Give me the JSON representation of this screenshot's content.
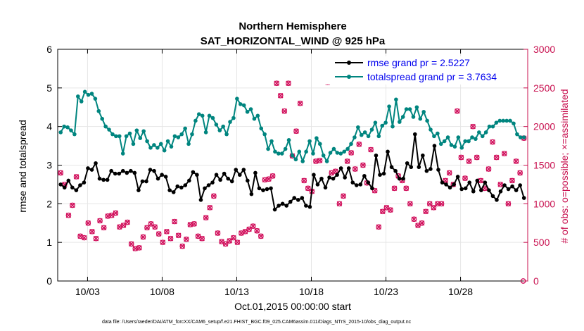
{
  "chart_data": {
    "type": "line",
    "title": [
      "Northern Hemisphere",
      "SAT_HORIZONTAL_WIND @ 925 hPa"
    ],
    "xlabel": "Oct.01,2015 00:00:00 start",
    "ylabel_left": "rmse and totalspread",
    "ylabel_right": "# of obs: o=possible; ×=assimilated",
    "footnote": "data file: /Users/raeder/DAI/ATM_forcXX/CAM6_setup/f.e21.FHIST_BGC.f09_025.CAM6assim.011/Diags_NTrS_2015-10/obs_diag_output.nc",
    "xlim": [
      1.0,
      32.5
    ],
    "ylim_left": [
      0,
      6
    ],
    "ylim_right": [
      0,
      3000
    ],
    "x_ticks": [
      3,
      8,
      13,
      18,
      23,
      28
    ],
    "x_ticklabels": [
      "10/03",
      "10/08",
      "10/13",
      "10/18",
      "10/23",
      "10/28"
    ],
    "y_left_ticks": [
      "0",
      "1",
      "2",
      "3",
      "4",
      "5",
      "6"
    ],
    "y_right_ticks": [
      "0",
      "500",
      "1000",
      "1500",
      "2000",
      "2500",
      "3000"
    ],
    "legend": [
      "rmse grand pr = 2.5227",
      "totalspread grand pr = 3.7634"
    ],
    "colors": {
      "rmse": "#000000",
      "spread": "#00857f",
      "obs": "#d1105c",
      "legend_text": "#0000ee",
      "right_axis": "#c8104f"
    },
    "series": [
      {
        "name": "rmse",
        "values": [
          2.5,
          2.42,
          2.6,
          2.42,
          2.35,
          2.48,
          2.55,
          2.92,
          2.88,
          3.05,
          2.65,
          2.62,
          2.62,
          2.85,
          2.78,
          2.78,
          2.85,
          2.8,
          2.85,
          2.8,
          2.35,
          2.58,
          2.58,
          2.88,
          2.85,
          2.65,
          2.75,
          2.7,
          2.35,
          2.3,
          2.45,
          2.42,
          2.48,
          2.6,
          2.82,
          2.75,
          2.1,
          2.4,
          2.48,
          2.55,
          2.75,
          2.62,
          2.78,
          2.65,
          2.58,
          2.88,
          2.75,
          2.88,
          2.6,
          2.25,
          2.8,
          2.4,
          2.35,
          2.38,
          2.4,
          1.85,
          1.95,
          2.0,
          1.95,
          2.05,
          2.15,
          2.1,
          2.15,
          1.95,
          1.92,
          2.75,
          2.5,
          2.65,
          2.42,
          2.68,
          2.65,
          2.75,
          2.92,
          2.68,
          2.92,
          2.55,
          2.48,
          2.5,
          2.72,
          2.55,
          2.4,
          3.25,
          2.75,
          2.78,
          3.35,
          2.95,
          2.85,
          2.65,
          2.65,
          3.05,
          2.95,
          3.8,
          2.95,
          3.25,
          2.85,
          2.9,
          3.5,
          2.88,
          2.55,
          2.5,
          2.42,
          2.5,
          2.7,
          2.38,
          2.4,
          2.55,
          2.32,
          2.6,
          2.35,
          2.55,
          2.35,
          2.2,
          2.1,
          2.32,
          2.48,
          2.38,
          2.45,
          2.35,
          2.48,
          2.15
        ],
        "marker": "dot"
      },
      {
        "name": "totalspread",
        "values": [
          3.85,
          4.0,
          3.98,
          3.9,
          3.8,
          4.78,
          4.65,
          4.9,
          4.82,
          4.85,
          4.72,
          4.4,
          4.2,
          4.0,
          3.92,
          3.8,
          3.75,
          3.75,
          3.3,
          3.75,
          3.82,
          3.55,
          3.9,
          3.7,
          3.88,
          3.62,
          3.45,
          3.52,
          3.45,
          3.55,
          3.38,
          3.62,
          3.48,
          3.75,
          3.72,
          3.8,
          3.95,
          3.55,
          3.8,
          4.15,
          4.32,
          4.28,
          3.85,
          4.28,
          4.22,
          4.05,
          3.9,
          4.0,
          3.8,
          4.12,
          4.22,
          4.72,
          4.58,
          4.55,
          4.38,
          4.45,
          4.2,
          4.28,
          3.95,
          3.8,
          3.42,
          3.62,
          3.35,
          3.3,
          3.3,
          3.42,
          3.65,
          3.25,
          3.15,
          3.35,
          3.1,
          3.35,
          3.62,
          3.3,
          3.7,
          3.55,
          3.25,
          3.1,
          3.32,
          3.42,
          3.32,
          3.3,
          3.35,
          3.42,
          3.55,
          3.72,
          3.98,
          3.78,
          3.85,
          3.75,
          3.92,
          4.1,
          3.75,
          4.02,
          4.1,
          4.52,
          4.0,
          4.7,
          4.12,
          4.25,
          4.45,
          4.45,
          4.25,
          4.5,
          4.2,
          4.38,
          4.15,
          3.92,
          3.75,
          3.82,
          3.55,
          3.62,
          3.72,
          3.52,
          3.48,
          3.72,
          3.45,
          3.62,
          3.62,
          3.72,
          3.68,
          3.85,
          3.75,
          3.85,
          4.0,
          4.0,
          4.1,
          4.15,
          4.15,
          4.15,
          4.15,
          4.08,
          3.8,
          3.72,
          3.72
        ],
        "marker": "dot"
      },
      {
        "name": "obs_possible",
        "values": [
          1400,
          1250,
          850,
          980,
          1350,
          580,
          560,
          750,
          640,
          550,
          780,
          690,
          840,
          850,
          880,
          700,
          720,
          760,
          480,
          420,
          430,
          570,
          690,
          740,
          700,
          610,
          500,
          640,
          550,
          770,
          590,
          450,
          540,
          730,
          740,
          580,
          550,
          820,
          950,
          1100,
          620,
          510,
          480,
          520,
          560,
          500,
          620,
          640,
          670,
          710,
          650,
          580,
          1310,
          1320,
          1360,
          2560,
          2400,
          2200,
          2560,
          1620,
          1940,
          2300,
          1300,
          1200,
          1160,
          1550,
          1560,
          2700,
          2570,
          1400,
          1420,
          1000,
          1100,
          1550,
          1660,
          1450,
          1770,
          1500,
          1270,
          1700,
          1170,
          700,
          900,
          950,
          920,
          1200,
          1360,
          1300,
          1200,
          1000,
          800,
          720,
          750,
          900,
          1000,
          950,
          1000,
          1000,
          1300,
          1400,
          1250,
          2200,
          1600,
          1330,
          1550,
          2000,
          1600,
          1300,
          1200,
          1450,
          1800,
          1600,
          1250,
          1650,
          1000,
          1300,
          1550,
          1400,
          1850
        ],
        "marker": "o"
      },
      {
        "name": "obs_assimilated",
        "values": [
          1400,
          1250,
          850,
          980,
          1350,
          580,
          560,
          750,
          640,
          550,
          780,
          690,
          840,
          850,
          880,
          700,
          720,
          760,
          480,
          420,
          430,
          570,
          690,
          740,
          700,
          610,
          500,
          640,
          550,
          770,
          590,
          450,
          540,
          730,
          740,
          580,
          550,
          820,
          950,
          1100,
          620,
          510,
          480,
          520,
          560,
          500,
          620,
          640,
          670,
          710,
          650,
          580,
          1310,
          1320,
          1360,
          2560,
          2400,
          2200,
          2560,
          1620,
          1940,
          2300,
          1300,
          1200,
          1160,
          1550,
          1560,
          2700,
          2570,
          1400,
          1420,
          1000,
          1100,
          1550,
          1660,
          1450,
          1770,
          1500,
          1270,
          1700,
          1170,
          700,
          900,
          950,
          920,
          1200,
          1360,
          1300,
          1200,
          1000,
          800,
          720,
          750,
          900,
          1000,
          950,
          1000,
          1000,
          1300,
          1400,
          1250,
          2200,
          1600,
          1330,
          1550,
          2000,
          1600,
          1300,
          1200,
          1450,
          1800,
          1600,
          1250,
          1650,
          1000,
          1300,
          1550,
          1400,
          1850
        ],
        "marker": "x"
      }
    ]
  }
}
